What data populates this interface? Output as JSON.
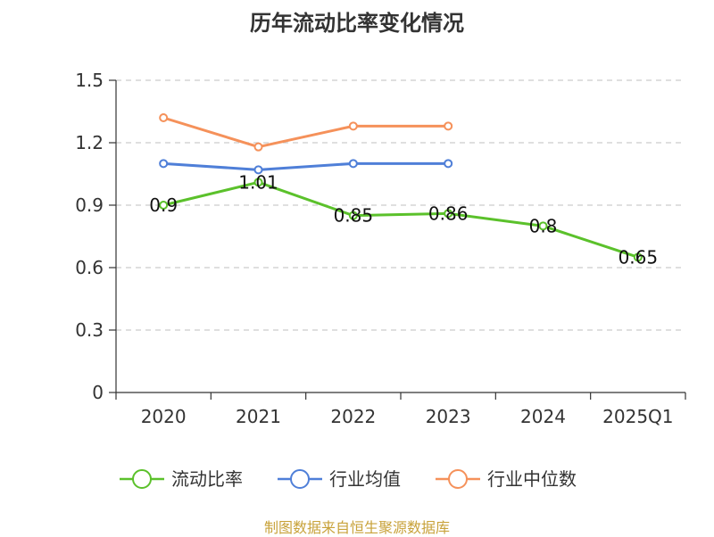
{
  "chart_data": {
    "type": "line",
    "title": "历年流动比率变化情况",
    "categories": [
      "2020",
      "2021",
      "2022",
      "2023",
      "2024",
      "2025Q1"
    ],
    "ylim": [
      0,
      1.5
    ],
    "yticks": [
      0,
      0.3,
      0.6,
      0.9,
      1.2,
      1.5
    ],
    "ytick_labels": [
      "0",
      "0.3",
      "0.6",
      "0.9",
      "1.2",
      "1.5"
    ],
    "grid": true,
    "legend_position": "bottom",
    "series": [
      {
        "name": "流动比率",
        "color": "#5bc12b",
        "values": [
          0.9,
          1.01,
          0.85,
          0.86,
          0.8,
          0.65
        ],
        "data_labels": [
          "0.9",
          "1.01",
          "0.85",
          "0.86",
          "0.8",
          "0.65"
        ]
      },
      {
        "name": "行业均值",
        "color": "#4f7fd8",
        "values": [
          1.1,
          1.07,
          1.1,
          1.1,
          null,
          null
        ]
      },
      {
        "name": "行业中位数",
        "color": "#f5915a",
        "values": [
          1.32,
          1.18,
          1.28,
          1.28,
          null,
          null
        ]
      }
    ]
  },
  "source_note": "制图数据来自恒生聚源数据库"
}
